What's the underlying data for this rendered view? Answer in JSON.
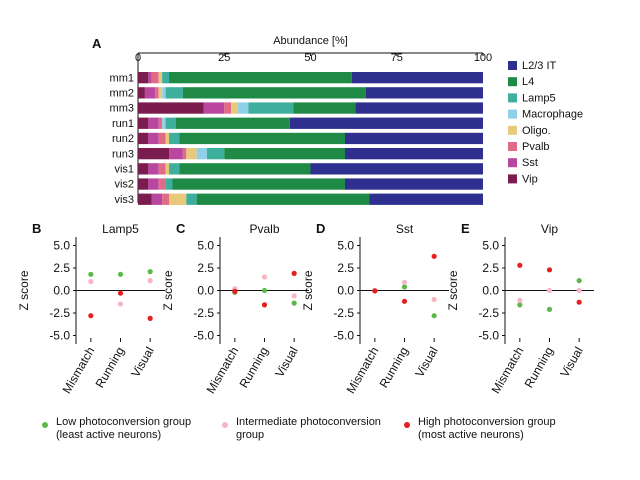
{
  "panel_labels": {
    "A": "A",
    "B": "B",
    "C": "C",
    "D": "D",
    "E": "E"
  },
  "chart_data": [
    {
      "panel": "A",
      "type": "bar",
      "stacked": true,
      "orientation": "horizontal",
      "title": "Abundance [%]",
      "xlim": [
        0,
        100
      ],
      "xticks": [
        0,
        25,
        50,
        75,
        100
      ],
      "categories": [
        "mm1",
        "mm2",
        "mm3",
        "run1",
        "run2",
        "run3",
        "vis1",
        "vis2",
        "vis3"
      ],
      "legend_position": "right",
      "series": [
        {
          "name": "Vip",
          "color": "#7b1c4f",
          "values": [
            3,
            2,
            19,
            3,
            3,
            9,
            3,
            3,
            4
          ]
        },
        {
          "name": "Sst",
          "color": "#b9479f",
          "values": [
            1,
            3,
            6,
            3,
            3,
            4,
            3,
            3,
            3
          ]
        },
        {
          "name": "Pvalb",
          "color": "#e06b84",
          "values": [
            2,
            1,
            2,
            1,
            2,
            1,
            2,
            2,
            2
          ]
        },
        {
          "name": "Oligo.",
          "color": "#e8c97a",
          "values": [
            1,
            1,
            2,
            0,
            1,
            3,
            1,
            0,
            5
          ]
        },
        {
          "name": "Macrophage",
          "color": "#8fd0e8",
          "values": [
            0,
            1,
            3,
            1,
            0,
            3,
            0,
            0,
            0
          ]
        },
        {
          "name": "Lamp5",
          "color": "#3eae9d",
          "values": [
            2,
            5,
            13,
            3,
            3,
            5,
            3,
            2,
            3
          ]
        },
        {
          "name": "L4",
          "color": "#1e8a46",
          "values": [
            53,
            53,
            18,
            33,
            48,
            35,
            38,
            50,
            50
          ]
        },
        {
          "name": "L2/3 IT",
          "color": "#2e2f8f",
          "values": [
            38,
            34,
            37,
            56,
            40,
            40,
            50,
            40,
            33
          ]
        }
      ]
    },
    {
      "panel": "B",
      "type": "scatter",
      "title": "Lamp5",
      "ylabel": "Z score",
      "categories": [
        "Mismatch",
        "Running",
        "Visual"
      ],
      "ylim": [
        -5.5,
        5.5
      ],
      "yticks": [
        "5.0",
        "2.5",
        "0.0",
        "-2.5",
        "-5.0"
      ],
      "series": [
        {
          "name": "Low photoconversion group",
          "color": "#5db84a",
          "values": [
            1.8,
            1.8,
            2.1
          ]
        },
        {
          "name": "Intermediate photoconversion group",
          "color": "#f7b6c2",
          "values": [
            1.0,
            -1.5,
            1.1
          ]
        },
        {
          "name": "High photoconversion group",
          "color": "#e61e1e",
          "values": [
            -2.8,
            -0.3,
            -3.1
          ]
        }
      ]
    },
    {
      "panel": "C",
      "type": "scatter",
      "title": "Pvalb",
      "ylabel": "Z score",
      "categories": [
        "Mismatch",
        "Running",
        "Visual"
      ],
      "ylim": [
        -5.5,
        5.5
      ],
      "yticks": [
        "5.0",
        "2.5",
        "0.0",
        "-2.5",
        "-5.0"
      ],
      "series": [
        {
          "name": "Low photoconversion group",
          "color": "#5db84a",
          "values": [
            -0.2,
            0.0,
            -1.4
          ]
        },
        {
          "name": "Intermediate photoconversion group",
          "color": "#f7b6c2",
          "values": [
            0.2,
            1.5,
            -0.6
          ]
        },
        {
          "name": "High photoconversion group",
          "color": "#e61e1e",
          "values": [
            -0.1,
            -1.6,
            1.9
          ]
        }
      ]
    },
    {
      "panel": "D",
      "type": "scatter",
      "title": "Sst",
      "ylabel": "Z score",
      "categories": [
        "Mismatch",
        "Running",
        "Visual"
      ],
      "ylim": [
        -5.5,
        5.5
      ],
      "yticks": [
        "5.0",
        "2.5",
        "0.0",
        "-2.5",
        "-5.0"
      ],
      "series": [
        {
          "name": "Low photoconversion group",
          "color": "#5db84a",
          "values": [
            0.0,
            0.4,
            -2.8
          ]
        },
        {
          "name": "Intermediate photoconversion group",
          "color": "#f7b6c2",
          "values": [
            0.0,
            0.9,
            -1.0
          ]
        },
        {
          "name": "High photoconversion group",
          "color": "#e61e1e",
          "values": [
            -0.05,
            -1.2,
            3.8
          ]
        }
      ]
    },
    {
      "panel": "E",
      "type": "scatter",
      "title": "Vip",
      "ylabel": "Z score",
      "categories": [
        "Mismatch",
        "Running",
        "Visual"
      ],
      "ylim": [
        -5.5,
        5.5
      ],
      "yticks": [
        "5.0",
        "2.5",
        "0.0",
        "-2.5",
        "-5.0"
      ],
      "series": [
        {
          "name": "Low photoconversion group",
          "color": "#5db84a",
          "values": [
            -1.6,
            -2.1,
            1.1
          ]
        },
        {
          "name": "Intermediate photoconversion group",
          "color": "#f7b6c2",
          "values": [
            -1.1,
            0.0,
            0.0
          ]
        },
        {
          "name": "High photoconversion group",
          "color": "#e61e1e",
          "values": [
            2.8,
            2.3,
            -1.3
          ]
        }
      ]
    }
  ],
  "bottom_legend": [
    {
      "color": "#5db84a",
      "line1": "Low photoconversion group",
      "line2": "(least active neurons)"
    },
    {
      "color": "#f7b6c2",
      "line1": "Intermediate photoconversion",
      "line2": "group"
    },
    {
      "color": "#e61e1e",
      "line1": "High photoconversion group",
      "line2": "(most active neurons)"
    }
  ]
}
